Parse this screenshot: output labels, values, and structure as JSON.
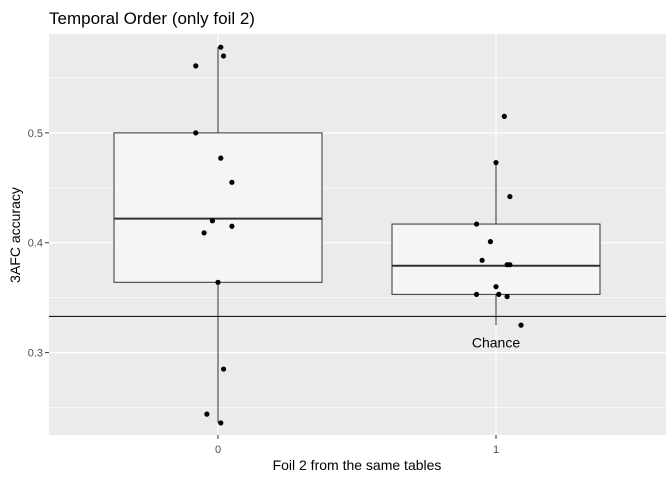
{
  "chart_data": {
    "type": "box",
    "title": "Temporal Order (only foil 2)",
    "xlabel": "Foil 2 from the same tables",
    "ylabel": "3AFC accuracy",
    "categories": [
      "0",
      "1"
    ],
    "y_ticks": [
      "0.3",
      "0.4",
      "0.5"
    ],
    "ylim": [
      0.225,
      0.59
    ],
    "grid": true,
    "boxes": [
      {
        "category": "0",
        "lower_whisker": 0.236,
        "q1": 0.364,
        "median": 0.422,
        "q3": 0.5,
        "upper_whisker": 0.578
      },
      {
        "category": "1",
        "lower_whisker": 0.325,
        "q1": 0.353,
        "median": 0.379,
        "q3": 0.417,
        "upper_whisker": 0.473
      }
    ],
    "points": [
      {
        "category": "0",
        "jitter": 0.01,
        "y": 0.578
      },
      {
        "category": "0",
        "jitter": 0.02,
        "y": 0.57
      },
      {
        "category": "0",
        "jitter": -0.08,
        "y": 0.561
      },
      {
        "category": "0",
        "jitter": -0.08,
        "y": 0.5
      },
      {
        "category": "0",
        "jitter": 0.01,
        "y": 0.477
      },
      {
        "category": "0",
        "jitter": 0.05,
        "y": 0.455
      },
      {
        "category": "0",
        "jitter": -0.02,
        "y": 0.42
      },
      {
        "category": "0",
        "jitter": 0.05,
        "y": 0.415
      },
      {
        "category": "0",
        "jitter": -0.05,
        "y": 0.409
      },
      {
        "category": "0",
        "jitter": 0.0,
        "y": 0.364
      },
      {
        "category": "0",
        "jitter": 0.02,
        "y": 0.285
      },
      {
        "category": "0",
        "jitter": -0.04,
        "y": 0.244
      },
      {
        "category": "0",
        "jitter": 0.01,
        "y": 0.236
      },
      {
        "category": "1",
        "jitter": 0.03,
        "y": 0.515
      },
      {
        "category": "1",
        "jitter": 0.0,
        "y": 0.473
      },
      {
        "category": "1",
        "jitter": 0.05,
        "y": 0.442
      },
      {
        "category": "1",
        "jitter": -0.07,
        "y": 0.417
      },
      {
        "category": "1",
        "jitter": -0.02,
        "y": 0.401
      },
      {
        "category": "1",
        "jitter": -0.05,
        "y": 0.384
      },
      {
        "category": "1",
        "jitter": 0.04,
        "y": 0.38
      },
      {
        "category": "1",
        "jitter": 0.05,
        "y": 0.38
      },
      {
        "category": "1",
        "jitter": 0.0,
        "y": 0.36
      },
      {
        "category": "1",
        "jitter": -0.07,
        "y": 0.353
      },
      {
        "category": "1",
        "jitter": 0.01,
        "y": 0.353
      },
      {
        "category": "1",
        "jitter": 0.04,
        "y": 0.351
      },
      {
        "category": "1",
        "jitter": 0.09,
        "y": 0.325
      }
    ],
    "hline": {
      "y": 0.333,
      "label": "Chance",
      "label_category": "1"
    },
    "colors": {
      "panel": "#ebebeb",
      "grid": "#ffffff",
      "box_fill": "#f5f5f5",
      "box_line": "#333333",
      "point": "#000000",
      "hline": "#000000"
    }
  }
}
